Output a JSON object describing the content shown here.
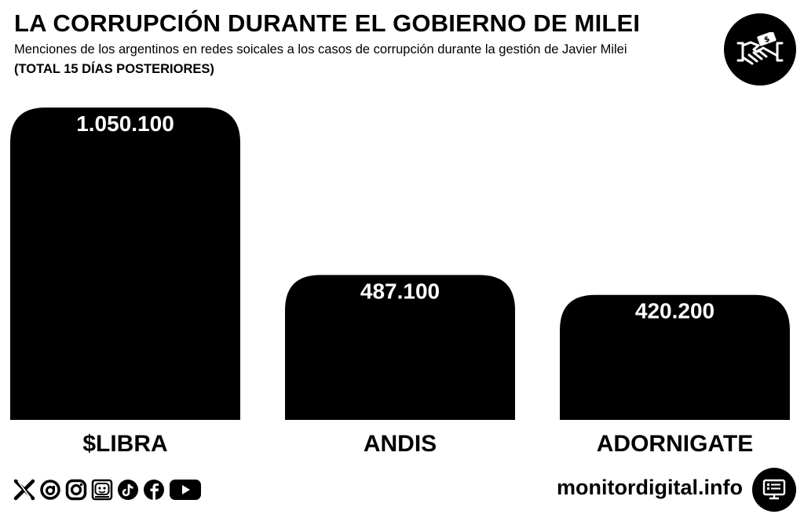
{
  "header": {
    "title": "LA CORRUPCIÓN DURANTE EL GOBIERNO DE MILEI",
    "subtitle": "Menciones de los argentinos en redes soicales a los casos de corrupción durante la gestión de Javier Milei",
    "subtitle_note": "(TOTAL 15 DÍAS POSTERIORES)"
  },
  "icons": {
    "header_logo": "handshake-money-icon",
    "footer_logo": "monitor-icon",
    "social": [
      "x-icon",
      "threads-icon",
      "instagram-icon",
      "kick-icon",
      "tiktok-icon",
      "facebook-icon",
      "youtube-icon"
    ]
  },
  "footer": {
    "site": "monitordigital.info"
  },
  "colors": {
    "bar": "#000000",
    "bar_label": "#ffffff",
    "background": "#ffffff"
  },
  "chart_data": {
    "type": "bar",
    "title": "LA CORRUPCIÓN DURANTE EL GOBIERNO DE MILEI",
    "xlabel": "",
    "ylabel": "",
    "categories": [
      "$LIBRA",
      "ANDIS",
      "ADORNIGATE"
    ],
    "values": [
      1050100,
      487100,
      420200
    ],
    "value_labels": [
      "1.050.100",
      "487.100",
      "420.200"
    ],
    "ylim": [
      0,
      1050100
    ],
    "grid": false,
    "legend": "none"
  }
}
